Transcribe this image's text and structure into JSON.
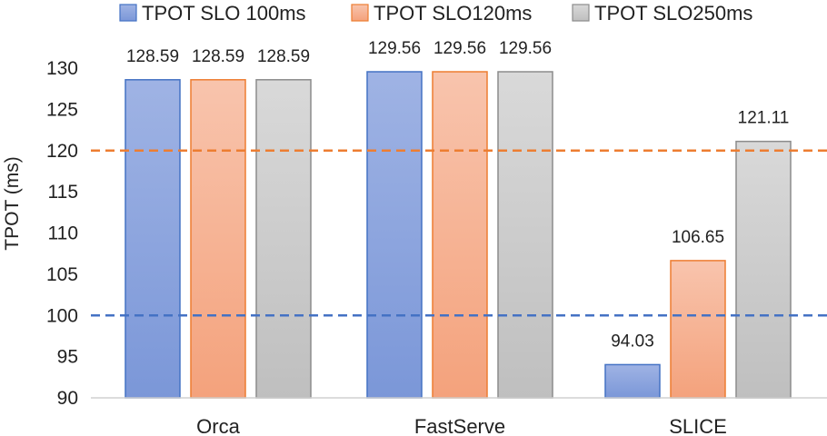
{
  "chart_data": {
    "type": "bar",
    "title": "",
    "xlabel": "",
    "ylabel": "TPOT (ms)",
    "ylim": [
      90,
      130
    ],
    "yticks": [
      90,
      95,
      100,
      105,
      110,
      115,
      120,
      125,
      130
    ],
    "grid": false,
    "legend_position": "top",
    "categories": [
      "Orca",
      "FastServe",
      "SLICE"
    ],
    "series": [
      {
        "name": "TPOT SLO 100ms",
        "values": [
          128.59,
          129.56,
          94.03
        ],
        "labels": [
          "128.59",
          "129.56",
          "94.03"
        ],
        "colors": {
          "top": "#9fb3e4",
          "bottom": "#7b97d8",
          "border": "#4472c4"
        }
      },
      {
        "name": "TPOT SLO120ms",
        "values": [
          128.59,
          129.56,
          106.65
        ],
        "labels": [
          "128.59",
          "129.56",
          "106.65"
        ],
        "colors": {
          "top": "#f8c4ad",
          "bottom": "#f4a27c",
          "border": "#ed7d31"
        }
      },
      {
        "name": "TPOT SLO250ms",
        "values": [
          128.59,
          129.56,
          121.11
        ],
        "labels": [
          "128.59",
          "129.56",
          "121.11"
        ],
        "colors": {
          "top": "#d9d9d9",
          "bottom": "#bfbfbf",
          "border": "#8c8c8c"
        }
      }
    ],
    "reference_lines": [
      {
        "value": 120,
        "color": "#ed7d31",
        "style": "dashed"
      },
      {
        "value": 100,
        "color": "#4472c4",
        "style": "dashed"
      }
    ]
  }
}
